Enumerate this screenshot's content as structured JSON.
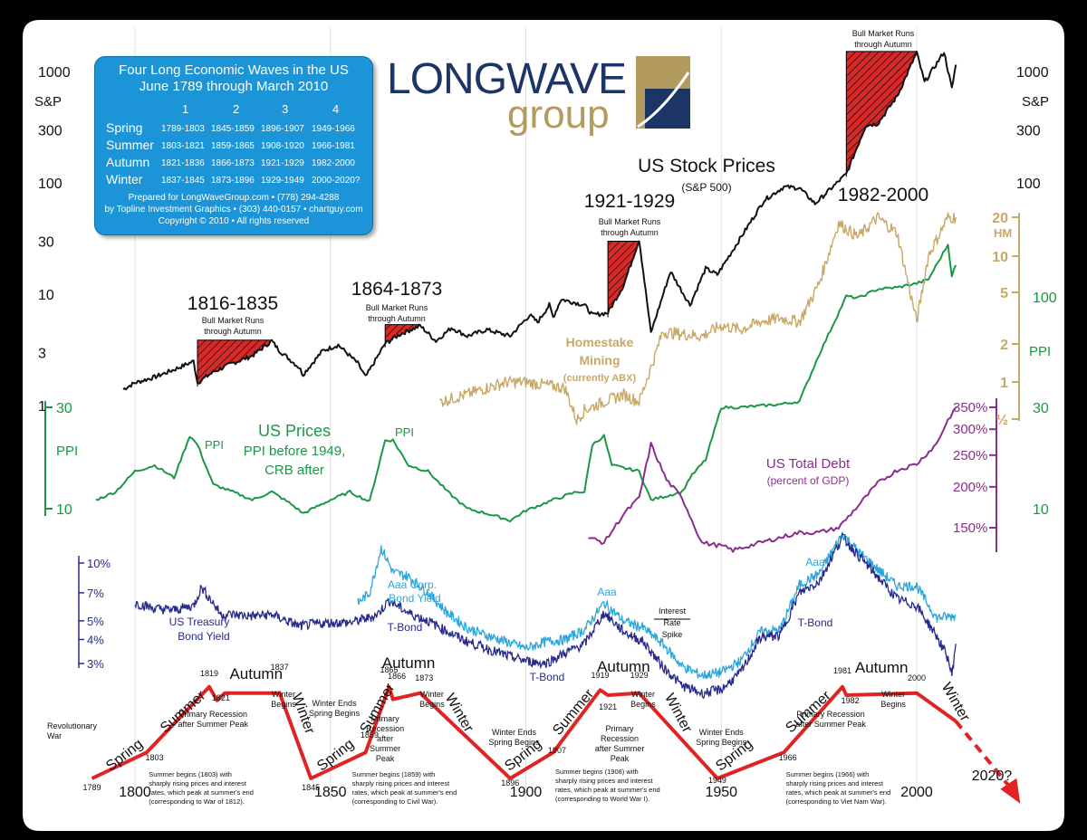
{
  "infobox": {
    "title_line1": "Four Long Economic Waves in the US",
    "title_line2": "June 1789 through March 2010",
    "wave_numbers": [
      "1",
      "2",
      "3",
      "4"
    ],
    "rows": [
      {
        "season": "Spring",
        "periods": [
          "1789-1803",
          "1845-1859",
          "1896-1907",
          "1949-1966"
        ]
      },
      {
        "season": "Summer",
        "periods": [
          "1803-1821",
          "1859-1865",
          "1908-1920",
          "1966-1981"
        ]
      },
      {
        "season": "Autumn",
        "periods": [
          "1821-1836",
          "1866-1873",
          "1921-1929",
          "1982-2000"
        ]
      },
      {
        "season": "Winter",
        "periods": [
          "1837-1845",
          "1873-1896",
          "1929-1949",
          "2000-2020?"
        ]
      }
    ],
    "credit1": "Prepared for LongWaveGroup.com • (778) 294-4288",
    "credit2": "by Topline Investment Graphics • (303) 440-0157 • chartguy.com",
    "copyright": "Copyright © 2010 • All rights reserved"
  },
  "logo": {
    "line1": "LONGWAVE",
    "line2": "group"
  },
  "chart_data": {
    "type": "line",
    "title": "US Stock Prices",
    "subtitle": "(S&P 500)",
    "x_axis": {
      "ticks": [
        1800,
        1850,
        1900,
        1950,
        2000
      ],
      "range": [
        1789,
        2020
      ]
    },
    "sp_axis": {
      "label": "S&P",
      "ticks": [
        "1000",
        "300",
        "100",
        "30",
        "10",
        "3",
        "1"
      ],
      "ticks_right": [
        "1000",
        "300",
        "100"
      ],
      "scale": "log"
    },
    "series": [
      {
        "name": "US Stock Prices",
        "color": "#111111",
        "x": [
          1797,
          1800,
          1805,
          1810,
          1815,
          1816,
          1820,
          1825,
          1830,
          1835,
          1837,
          1842,
          1843,
          1848,
          1852,
          1857,
          1859,
          1864,
          1868,
          1873,
          1877,
          1881,
          1885,
          1890,
          1896,
          1901,
          1903,
          1906,
          1907,
          1909,
          1915,
          1917,
          1921,
          1925,
          1929,
          1932,
          1937,
          1942,
          1946,
          1949,
          1953,
          1961,
          1966,
          1970,
          1974,
          1982,
          1987,
          1990,
          1995,
          2000,
          2002,
          2007,
          2009,
          2010
        ],
        "y": [
          1.4,
          1.6,
          1.8,
          2.1,
          2.5,
          1.6,
          2.0,
          2.4,
          2.8,
          3.8,
          3.1,
          2.2,
          1.9,
          3.1,
          3.5,
          2.4,
          1.8,
          3.6,
          4.4,
          5.2,
          3.8,
          5.0,
          4.2,
          4.8,
          4.2,
          6.5,
          5.6,
          8.0,
          6.2,
          9.0,
          8.0,
          6.5,
          6.8,
          12,
          31,
          4.5,
          16,
          8.0,
          17,
          15,
          25,
          70,
          92,
          90,
          65,
          120,
          330,
          340,
          600,
          1480,
          800,
          1500,
          700,
          1150
        ]
      },
      {
        "name": "PPI",
        "color": "#1a9845",
        "x": [
          1790,
          1795,
          1800,
          1805,
          1810,
          1814,
          1816,
          1820,
          1825,
          1830,
          1835,
          1840,
          1843,
          1850,
          1855,
          1860,
          1864,
          1866,
          1870,
          1875,
          1880,
          1885,
          1890,
          1896,
          1900,
          1907,
          1913,
          1915,
          1917,
          1920,
          1922,
          1929,
          1932,
          1940,
          1942,
          1946,
          1950,
          1955,
          1965,
          1970,
          1975,
          1982,
          1985,
          1990,
          1995,
          2000,
          2003,
          2008,
          2009,
          2010
        ],
        "y": [
          11,
          12,
          15,
          16,
          14,
          22,
          20,
          13,
          12,
          11,
          12,
          10.5,
          9.5,
          11,
          12,
          10.8,
          21,
          21,
          16,
          15,
          12,
          10,
          9.5,
          8.8,
          9.8,
          11,
          12,
          12,
          20,
          22,
          16,
          15,
          11,
          12,
          14,
          17,
          30,
          30,
          31,
          32,
          53,
          100,
          98,
          108,
          110,
          115,
          120,
          175,
          125,
          140
        ]
      },
      {
        "name": "Homestake Mining (currently ABX)",
        "color": "#c8a868",
        "x": [
          1878,
          1885,
          1890,
          1895,
          1900,
          1905,
          1910,
          1913,
          1915,
          1920,
          1925,
          1929,
          1933,
          1935,
          1940,
          1945,
          1950,
          1955,
          1960,
          1965,
          1970,
          1975,
          1980,
          1985,
          1990,
          1995,
          2000,
          2003,
          2008,
          2010
        ],
        "y": [
          0.7,
          0.8,
          0.9,
          1.0,
          1.0,
          0.95,
          0.9,
          0.5,
          0.6,
          0.7,
          0.8,
          0.7,
          1.6,
          2.5,
          2.4,
          2.3,
          2.8,
          2.6,
          3.0,
          3.2,
          3.0,
          6.0,
          18,
          14,
          20,
          15,
          3.0,
          10,
          20,
          20
        ]
      },
      {
        "name": "US Total Debt (percent of GDP)",
        "color": "#8a2d8e",
        "x": [
          1916,
          1920,
          1925,
          1929,
          1932,
          1936,
          1940,
          1945,
          1950,
          1953,
          1960,
          1970,
          1975,
          1980,
          1985,
          1990,
          1995,
          2000,
          2005,
          2008,
          2010
        ],
        "y": [
          140,
          135,
          165,
          185,
          270,
          210,
          185,
          135,
          132,
          128,
          135,
          145,
          145,
          150,
          175,
          205,
          225,
          235,
          270,
          320,
          350
        ]
      },
      {
        "name": "Aaa Corp. Bond Yield",
        "color": "#29a7dd",
        "x": [
          1857,
          1860,
          1863,
          1866,
          1870,
          1875,
          1880,
          1885,
          1890,
          1895,
          1900,
          1905,
          1910,
          1915,
          1920,
          1925,
          1930,
          1935,
          1940,
          1945,
          1950,
          1955,
          1960,
          1965,
          1970,
          1975,
          1981,
          1985,
          1990,
          1995,
          2000,
          2005,
          2010
        ],
        "y": [
          6.2,
          7.0,
          12.0,
          9.0,
          8.5,
          7.0,
          5.5,
          4.6,
          4.2,
          3.9,
          3.6,
          3.9,
          4.0,
          4.5,
          6.2,
          5.0,
          4.6,
          3.8,
          2.9,
          2.6,
          2.7,
          3.1,
          4.4,
          4.5,
          7.7,
          8.8,
          14.2,
          11.5,
          9.3,
          7.6,
          7.6,
          5.2,
          5.3
        ]
      },
      {
        "name": "T-Bond",
        "color": "#262b8a",
        "x": [
          1800,
          1805,
          1810,
          1815,
          1817,
          1820,
          1822,
          1825,
          1830,
          1835,
          1842,
          1845,
          1850,
          1855,
          1860,
          1862,
          1865,
          1870,
          1875,
          1880,
          1885,
          1890,
          1895,
          1900,
          1905,
          1910,
          1915,
          1920,
          1925,
          1930,
          1935,
          1940,
          1945,
          1950,
          1955,
          1960,
          1965,
          1970,
          1975,
          1981,
          1985,
          1990,
          1995,
          2000,
          2005,
          2008,
          2009,
          2010
        ],
        "y": [
          6.2,
          5.8,
          5.7,
          6.0,
          7.5,
          6.2,
          5.4,
          5.4,
          5.3,
          5.4,
          4.7,
          4.8,
          4.9,
          4.9,
          5.2,
          5.4,
          6.4,
          5.5,
          5.0,
          4.4,
          3.9,
          3.6,
          3.3,
          3.1,
          3.0,
          3.4,
          3.8,
          5.5,
          4.4,
          3.9,
          2.9,
          2.3,
          2.1,
          2.2,
          2.7,
          4.1,
          4.2,
          7.0,
          8.0,
          13.7,
          11.0,
          8.5,
          6.5,
          6.0,
          4.2,
          3.2,
          2.6,
          3.8
        ]
      }
    ],
    "ppi_axis": {
      "label": "PPI",
      "ticks_left": [
        "30",
        "10"
      ],
      "ticks_right": [
        "100",
        "30",
        "10"
      ]
    },
    "hm_axis": {
      "label": "HM",
      "ticks": [
        "20",
        "10",
        "5",
        "2",
        "1",
        "½"
      ]
    },
    "debt_axis": {
      "ticks": [
        "350%",
        "300%",
        "250%",
        "200%",
        "150%"
      ]
    },
    "yield_axis": {
      "ticks": [
        "10%",
        "7%",
        "5%",
        "4%",
        "3%"
      ]
    },
    "bull_markets": [
      {
        "label": "1816-1835",
        "note": "Bull Market Runs through Autumn",
        "start": 1816,
        "end": 1835
      },
      {
        "label": "1864-1873",
        "note": "Bull Market Runs through Autumn",
        "start": 1864,
        "end": 1873
      },
      {
        "label": "1921-1929",
        "note": "Bull Market Runs through Autumn",
        "start": 1921,
        "end": 1929
      },
      {
        "label": "1982-2000",
        "note": "Bull Market Runs through Autumn",
        "start": 1982,
        "end": 2000
      }
    ],
    "wave": {
      "x": [
        1789,
        1803,
        1819,
        1821,
        1823,
        1837,
        1845,
        1859,
        1865,
        1866,
        1873,
        1896,
        1907,
        1919,
        1921,
        1929,
        1949,
        1966,
        1981,
        1982,
        2000,
        2010
      ],
      "level": [
        0.0,
        0.25,
        0.88,
        0.75,
        0.82,
        0.82,
        0.0,
        0.25,
        0.88,
        0.76,
        0.82,
        0.0,
        0.25,
        0.85,
        0.8,
        0.82,
        0.0,
        0.25,
        0.88,
        0.8,
        0.82,
        0.55
      ],
      "forecast_end": {
        "x": 2020,
        "level": -0.05
      }
    },
    "annotations": {
      "us_prices_title": [
        "US Prices",
        "PPI before 1949,",
        "CRB after"
      ],
      "ppi_peak_label": "PPI",
      "homestake": [
        "Homestake",
        "Mining",
        "(currently ABX)"
      ],
      "debt": [
        "US Total Debt",
        "(percent of GDP)"
      ],
      "aaa_label": "Aaa Corp.",
      "aaa_label2": "Bond Yield",
      "aaa": "Aaa",
      "tbond": "T-Bond",
      "treasury": [
        "US Treasury",
        "Bond Yield"
      ],
      "interest_spike": [
        "Interest",
        "Rate",
        "Spike"
      ],
      "revolutionary": [
        "Revolutionary",
        "War"
      ],
      "forecast": "2020?",
      "seasons": [
        "Spring",
        "Summer",
        "Autumn",
        "Winter"
      ],
      "winter_begins": [
        "Winter",
        "Begins"
      ],
      "winter_ends": [
        "Winter Ends",
        "Spring Begins"
      ],
      "primary_recession": [
        "Primary Recession",
        "after Summer Peak"
      ],
      "year_labels": [
        "1789",
        "1803",
        "1819",
        "1821",
        "1837",
        "1845",
        "1859",
        "1865",
        "1866",
        "1873",
        "1896",
        "1907",
        "1919",
        "1921",
        "1929",
        "1949",
        "1966",
        "1981",
        "1982",
        "2000"
      ],
      "notes": [
        [
          "Summer begins (1803) with",
          "sharply rising prices and interest",
          "rates, which peak at summer's end",
          "(corresponding to War of 1812)."
        ],
        [
          "Summer begins (1859) with",
          "sharply rising prices and interest",
          "rates, which peak at summer's end",
          "(corresponding to Civil War)."
        ],
        [
          "Summer begins (1908) with",
          "sharply rising prices and interest",
          "rates, which peak at summer's end",
          "(corresponding to World War I)."
        ],
        [
          "Summer begins (1966) with",
          "sharply rising prices and interest",
          "rates, which peak at summer's end",
          "(corresponding to Viet Nam War)."
        ]
      ]
    }
  }
}
